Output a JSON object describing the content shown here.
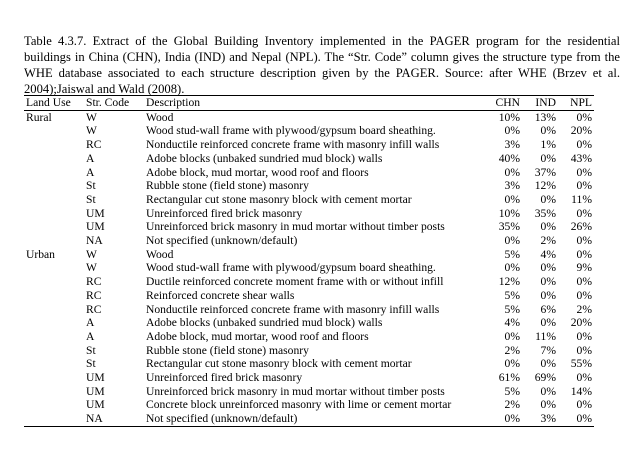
{
  "caption": "Table 4.3.7. Extract of the Global Building Inventory implemented in the PAGER program for the residential buildings in China (CHN), India (IND) and Nepal (NPL). The “Str. Code” column gives the structure type from the WHE database associated to each structure description given by the PAGER. Source: after WHE (Brzev et al. 2004);Jaiswal and Wald (2008).",
  "headers": {
    "land_use": "Land Use",
    "str_code": "Str. Code",
    "description": "Description",
    "chn": "CHN",
    "ind": "IND",
    "npl": "NPL"
  },
  "rows": [
    {
      "land": "Rural",
      "code": "W",
      "desc": "Wood",
      "chn": "10%",
      "ind": "13%",
      "npl": "0%"
    },
    {
      "land": "",
      "code": "W",
      "desc": "Wood stud-wall frame with plywood/gypsum board sheathing.",
      "chn": "0%",
      "ind": "0%",
      "npl": "20%"
    },
    {
      "land": "",
      "code": "RC",
      "desc": "Nonductile reinforced concrete frame with masonry infill walls",
      "chn": "3%",
      "ind": "1%",
      "npl": "0%"
    },
    {
      "land": "",
      "code": "A",
      "desc": "Adobe blocks (unbaked sundried mud block) walls",
      "chn": "40%",
      "ind": "0%",
      "npl": "43%"
    },
    {
      "land": "",
      "code": "A",
      "desc": "Adobe block, mud mortar, wood roof and floors",
      "chn": "0%",
      "ind": "37%",
      "npl": "0%"
    },
    {
      "land": "",
      "code": "St",
      "desc": "Rubble stone (field stone) masonry",
      "chn": "3%",
      "ind": "12%",
      "npl": "0%"
    },
    {
      "land": "",
      "code": "St",
      "desc": "Rectangular cut stone masonry block with cement mortar",
      "chn": "0%",
      "ind": "0%",
      "npl": "11%"
    },
    {
      "land": "",
      "code": "UM",
      "desc": "Unreinforced fired brick masonry",
      "chn": "10%",
      "ind": "35%",
      "npl": "0%"
    },
    {
      "land": "",
      "code": "UM",
      "desc": "Unreinforced brick masonry in mud mortar without timber posts",
      "chn": "35%",
      "ind": "0%",
      "npl": "26%"
    },
    {
      "land": "",
      "code": "NA",
      "desc": "Not specified (unknown/default)",
      "chn": "0%",
      "ind": "2%",
      "npl": "0%"
    },
    {
      "land": "Urban",
      "code": "W",
      "desc": "Wood",
      "chn": "5%",
      "ind": "4%",
      "npl": "0%"
    },
    {
      "land": "",
      "code": "W",
      "desc": "Wood stud-wall frame with plywood/gypsum board sheathing.",
      "chn": "0%",
      "ind": "0%",
      "npl": "9%"
    },
    {
      "land": "",
      "code": "RC",
      "desc": "Ductile reinforced concrete moment frame with or without infill",
      "chn": "12%",
      "ind": "0%",
      "npl": "0%"
    },
    {
      "land": "",
      "code": "RC",
      "desc": "Reinforced concrete shear walls",
      "chn": "5%",
      "ind": "0%",
      "npl": "0%"
    },
    {
      "land": "",
      "code": "RC",
      "desc": "Nonductile reinforced concrete frame with masonry infill walls",
      "chn": "5%",
      "ind": "6%",
      "npl": "2%"
    },
    {
      "land": "",
      "code": "A",
      "desc": "Adobe blocks (unbaked sundried mud block) walls",
      "chn": "4%",
      "ind": "0%",
      "npl": "20%"
    },
    {
      "land": "",
      "code": "A",
      "desc": "Adobe block, mud mortar, wood roof and floors",
      "chn": "0%",
      "ind": "11%",
      "npl": "0%"
    },
    {
      "land": "",
      "code": "St",
      "desc": "Rubble stone (field stone) masonry",
      "chn": "2%",
      "ind": "7%",
      "npl": "0%"
    },
    {
      "land": "",
      "code": "St",
      "desc": "Rectangular cut stone masonry block with cement mortar",
      "chn": "0%",
      "ind": "0%",
      "npl": "55%"
    },
    {
      "land": "",
      "code": "UM",
      "desc": "Unreinforced fired brick masonry",
      "chn": "61%",
      "ind": "69%",
      "npl": "0%"
    },
    {
      "land": "",
      "code": "UM",
      "desc": "Unreinforced brick masonry in mud mortar without timber posts",
      "chn": "5%",
      "ind": "0%",
      "npl": "14%"
    },
    {
      "land": "",
      "code": "UM",
      "desc": "Concrete block unreinforced masonry with lime or cement mortar",
      "chn": "2%",
      "ind": "0%",
      "npl": "0%"
    },
    {
      "land": "",
      "code": "NA",
      "desc": "Not specified (unknown/default)",
      "chn": "0%",
      "ind": "3%",
      "npl": "0%"
    }
  ]
}
